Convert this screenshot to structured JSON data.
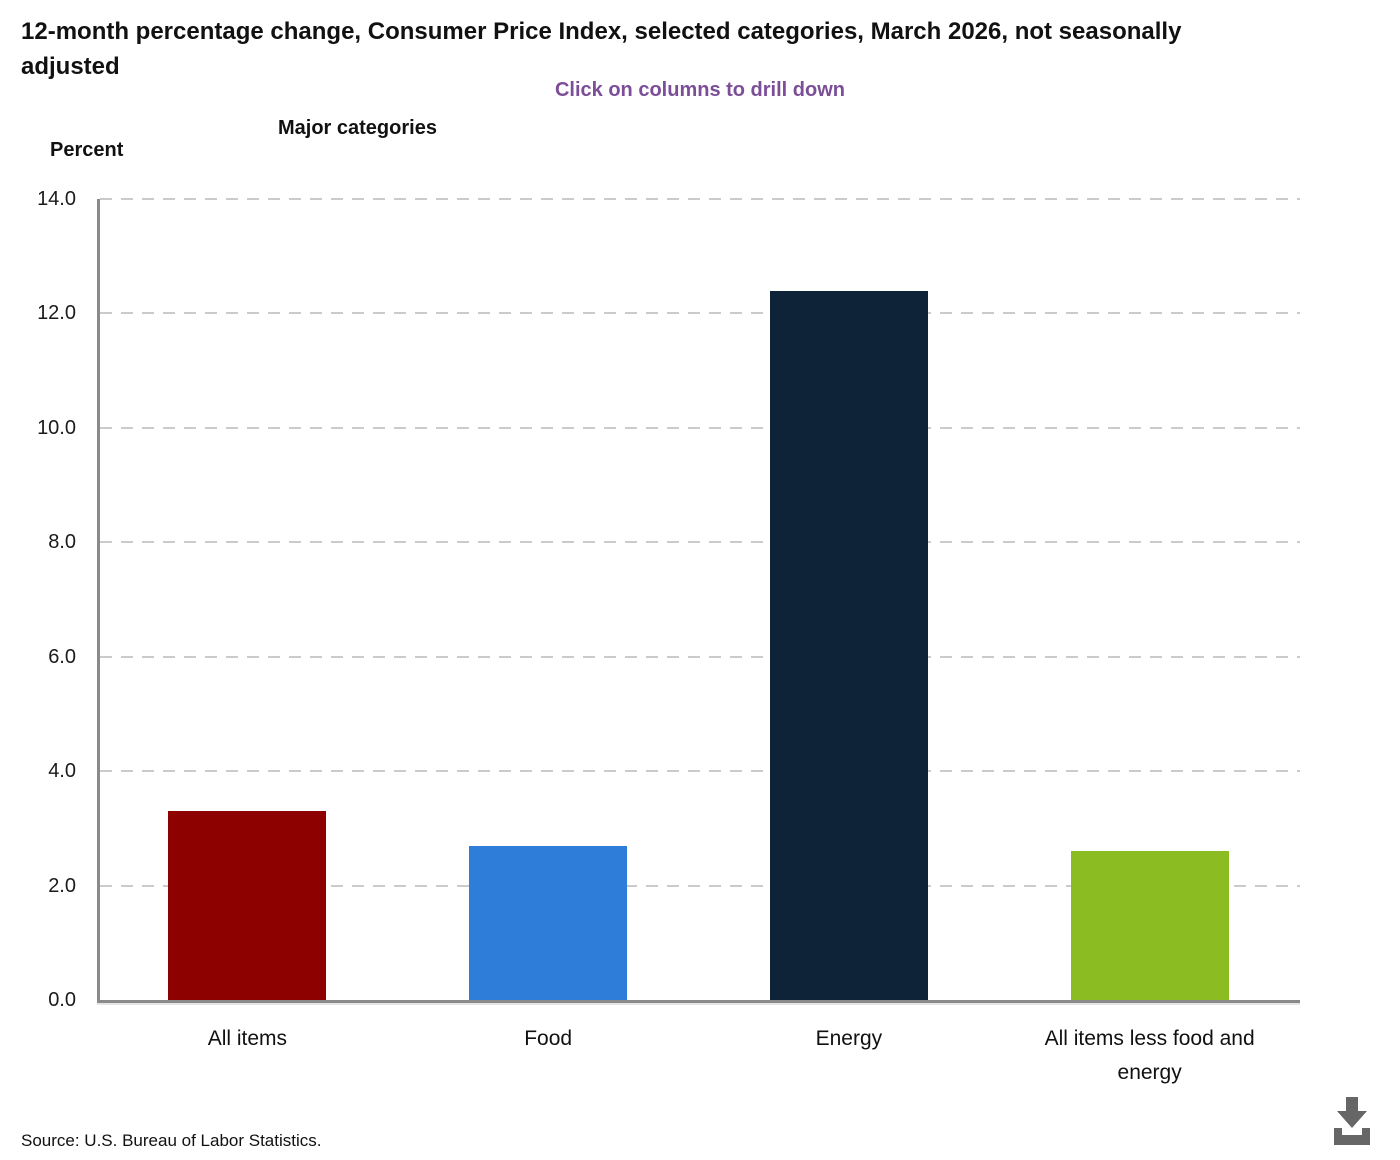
{
  "header": {
    "title": "12-month percentage change, Consumer Price Index, selected categories, March 2026, not seasonally adjusted",
    "subtitle": "Click on columns to drill down",
    "group_label": "Major categories",
    "y_axis_title": "Percent"
  },
  "chart_data": {
    "type": "bar",
    "title": "12-month percentage change, Consumer Price Index, selected categories, March 2026, not seasonally adjusted",
    "categories": [
      "All items",
      "Food",
      "Energy",
      "All items less food and energy"
    ],
    "values": [
      3.3,
      2.7,
      12.4,
      2.6
    ],
    "bar_colors": [
      "#8e0101",
      "#2e7dd8",
      "#0e2238",
      "#8bbd23"
    ],
    "xlabel": "Major categories",
    "ylabel": "Percent",
    "ylim": [
      0,
      14
    ],
    "ytick_step": 2,
    "yticks": [
      "14.0",
      "12.0",
      "10.0",
      "8.0",
      "6.0",
      "4.0",
      "2.0",
      "0.0"
    ],
    "grid": "horizontal-dashed",
    "legend": "none",
    "annotation": "Click on columns to drill down"
  },
  "footer": {
    "source": "Source: U.S. Bureau of Labor Statistics.",
    "download_icon": "download-icon"
  },
  "colors": {
    "subtitle": "#7b4e97",
    "axis": "#8a8a8a",
    "grid": "#cbcbcb",
    "title_text": "#111111",
    "tick_text": "#1a1a1a",
    "download_icon": "#666666"
  }
}
